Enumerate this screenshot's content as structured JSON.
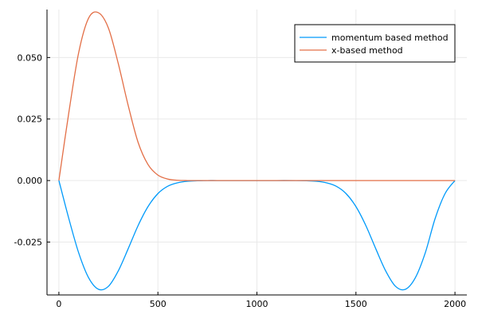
{
  "chart_data": {
    "type": "line",
    "title": "",
    "xlabel": "",
    "ylabel": "",
    "xlim": [
      -60,
      2060
    ],
    "ylim": [
      -0.0465,
      0.0695
    ],
    "xticks": [
      0,
      500,
      1000,
      1500,
      2000
    ],
    "xtick_labels": [
      "0",
      "500",
      "1000",
      "1500",
      "2000"
    ],
    "yticks": [
      -0.025,
      0.0,
      0.025,
      0.05
    ],
    "ytick_labels": [
      "-0.025",
      "0.000",
      "0.025",
      "0.050"
    ],
    "grid": true,
    "legend_position": "top-right",
    "series": [
      {
        "name": "momentum based method",
        "color": "#009AFA",
        "x": [
          0,
          50,
          100,
          150,
          200,
          250,
          300,
          350,
          400,
          450,
          500,
          550,
          600,
          650,
          700,
          750,
          800,
          900,
          1000,
          1100,
          1200,
          1250,
          1300,
          1350,
          1400,
          1450,
          1500,
          1550,
          1600,
          1650,
          1700,
          1750,
          1800,
          1850,
          1900,
          1950,
          2000
        ],
        "y": [
          0.0,
          -0.0154,
          -0.0294,
          -0.0395,
          -0.0442,
          -0.043,
          -0.0367,
          -0.0277,
          -0.0183,
          -0.0106,
          -0.0053,
          -0.0023,
          -0.0009,
          -0.0003,
          -0.0001,
          0.0,
          0.0,
          0.0,
          0.0,
          0.0,
          0.0,
          -0.0001,
          -0.0003,
          -0.0009,
          -0.0023,
          -0.0053,
          -0.0106,
          -0.0183,
          -0.0277,
          -0.0367,
          -0.043,
          -0.0442,
          -0.0395,
          -0.0294,
          -0.0154,
          -0.0053,
          0.0
        ]
      },
      {
        "name": "x-based method",
        "color": "#E36F47",
        "x": [
          0,
          50,
          100,
          150,
          200,
          250,
          300,
          350,
          400,
          450,
          500,
          550,
          600,
          650,
          700,
          750,
          800,
          1000,
          1200,
          1400,
          1600,
          1800,
          2000
        ],
        "y": [
          0.0,
          0.0275,
          0.052,
          0.066,
          0.0682,
          0.062,
          0.0475,
          0.0305,
          0.0155,
          0.0065,
          0.0022,
          0.0006,
          0.0001,
          0.0,
          0.0,
          0.0,
          0.0,
          0.0,
          0.0,
          0.0,
          0.0,
          0.0,
          0.0
        ]
      }
    ]
  }
}
